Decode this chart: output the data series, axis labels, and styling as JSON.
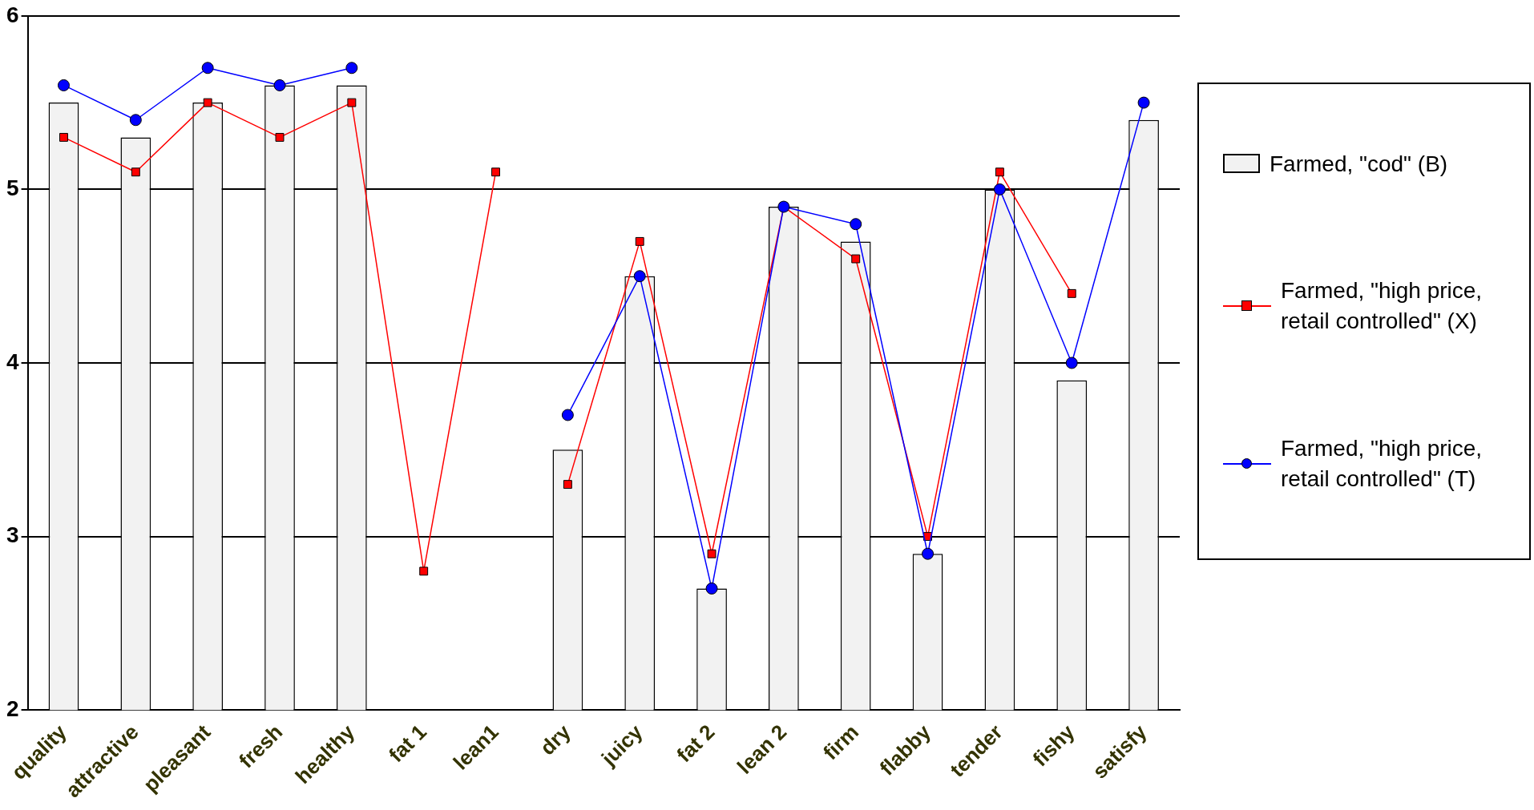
{
  "chart_data": {
    "type": "bar",
    "categories": [
      "quality",
      "attractive",
      "pleasant",
      "fresh",
      "healthy",
      "fat 1",
      "lean1",
      "dry",
      "juicy",
      "fat 2",
      "lean 2",
      "firm",
      "flabby",
      "tender",
      "fishy",
      "satisfy"
    ],
    "series": [
      {
        "name": "Farmed, \"cod\" (B)",
        "color": "#f2f2f2",
        "values": [
          5.5,
          5.3,
          5.5,
          5.6,
          5.6,
          null,
          null,
          3.5,
          4.5,
          2.7,
          4.9,
          4.7,
          2.9,
          5.0,
          3.9,
          5.4
        ]
      },
      {
        "name": "Farmed, \"high price, retail controlled\" (X)",
        "type": "line",
        "color": "#ff0000",
        "marker": "square",
        "values": [
          5.3,
          5.1,
          5.5,
          5.3,
          5.5,
          2.8,
          5.1,
          null,
          null,
          null,
          null,
          null,
          null,
          null,
          null,
          null
        ]
      },
      {
        "type": "line",
        "color": "#ff0000",
        "marker": "square",
        "values": [
          null,
          null,
          null,
          null,
          null,
          null,
          null,
          3.3,
          4.7,
          2.9,
          4.9,
          4.6,
          3.0,
          5.1,
          4.4,
          null
        ]
      },
      {
        "name": "Farmed, \"high price, retail controlled\" (T)",
        "type": "line",
        "color": "#0000ff",
        "marker": "circle",
        "values": [
          5.6,
          5.4,
          5.7,
          5.6,
          5.7,
          null,
          null,
          3.7,
          4.5,
          2.7,
          4.9,
          4.8,
          2.9,
          5.0,
          4.0,
          5.5
        ]
      }
    ],
    "ylim": [
      2,
      6
    ],
    "yticks": [
      2,
      3,
      4,
      5,
      6
    ],
    "grid": "y",
    "legend": "right",
    "line_style": "solid"
  }
}
